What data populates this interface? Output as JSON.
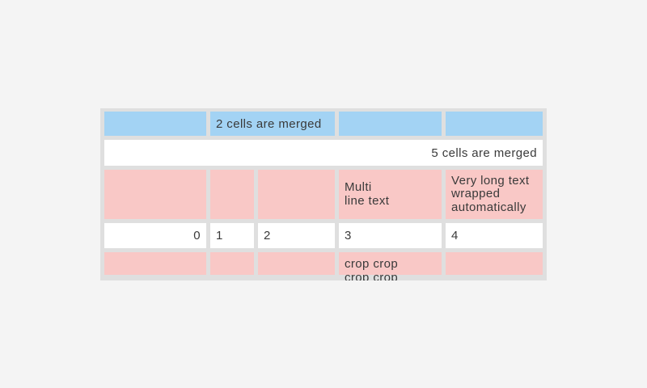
{
  "scene": {
    "background_color": "#f4f4f4"
  },
  "table": {
    "widget": "table-with-merged-cells",
    "background_color": "#dfdfdf",
    "text_color": "#3a3a3a",
    "cell_colors": {
      "blue": "#a3d3f4",
      "pink": "#f9c8c6",
      "white": "#ffffff"
    },
    "rows": [
      {
        "type": "blue",
        "cells": [
          {
            "text": ""
          },
          {
            "text": "2 cells are merged",
            "merged_columns": 2
          },
          {
            "text": ""
          },
          {
            "text": ""
          }
        ]
      },
      {
        "type": "white",
        "cells": [
          {
            "text": "5 cells are merged",
            "merged_columns": 5,
            "align": "right"
          }
        ]
      },
      {
        "type": "pink",
        "cells": [
          {
            "text": ""
          },
          {
            "text": ""
          },
          {
            "text": ""
          },
          {
            "text": "Multi\nline text"
          },
          {
            "text": "Very long text wrapped automatically"
          }
        ]
      },
      {
        "type": "white",
        "cells": [
          {
            "text": "0",
            "align": "right"
          },
          {
            "text": "1"
          },
          {
            "text": "2"
          },
          {
            "text": "3"
          },
          {
            "text": "4"
          }
        ]
      },
      {
        "type": "pink",
        "cells": [
          {
            "text": ""
          },
          {
            "text": ""
          },
          {
            "text": ""
          },
          {
            "text": "crop crop crop crop",
            "cropped": true
          },
          {
            "text": ""
          }
        ]
      }
    ]
  }
}
